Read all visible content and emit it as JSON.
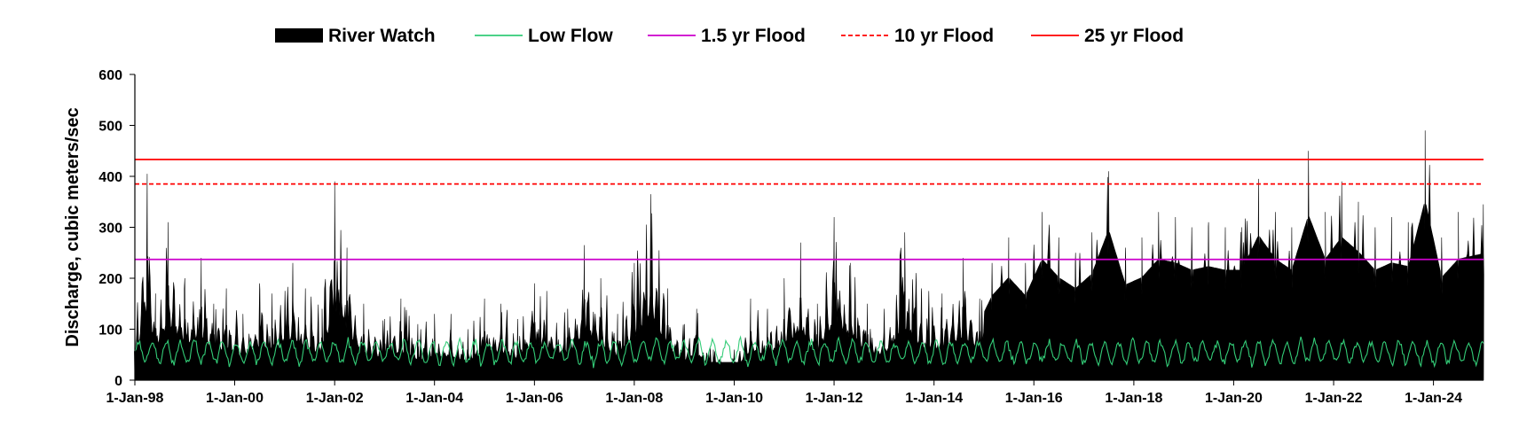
{
  "chart_data": {
    "type": "area",
    "title": "",
    "xlabel": "",
    "ylabel": "Discharge, cubic meters/sec",
    "ylim": [
      0,
      600
    ],
    "yticks": [
      0,
      100,
      200,
      300,
      400,
      500,
      600
    ],
    "xlim": [
      "1998-01-01",
      "2025-01-01"
    ],
    "xticks": [
      {
        "date": "1998-01-01",
        "label": "1-Jan-98"
      },
      {
        "date": "2000-01-01",
        "label": "1-Jan-00"
      },
      {
        "date": "2002-01-01",
        "label": "1-Jan-02"
      },
      {
        "date": "2004-01-01",
        "label": "1-Jan-04"
      },
      {
        "date": "2006-01-01",
        "label": "1-Jan-06"
      },
      {
        "date": "2008-01-01",
        "label": "1-Jan-08"
      },
      {
        "date": "2010-01-01",
        "label": "1-Jan-10"
      },
      {
        "date": "2012-01-01",
        "label": "1-Jan-12"
      },
      {
        "date": "2014-01-01",
        "label": "1-Jan-14"
      },
      {
        "date": "2016-01-01",
        "label": "1-Jan-16"
      },
      {
        "date": "2018-01-01",
        "label": "1-Jan-18"
      },
      {
        "date": "2020-01-01",
        "label": "1-Jan-20"
      },
      {
        "date": "2022-01-01",
        "label": "1-Jan-22"
      },
      {
        "date": "2024-01-01",
        "label": "1-Jan-24"
      }
    ],
    "grid": false,
    "legend_position": "top",
    "series": [
      {
        "name": "River Watch",
        "style": "area",
        "color": "#000000",
        "x": [
          "1998-01-01",
          "1998-04-01",
          "1998-06-01",
          "1998-09-01",
          "1999-01-01",
          "1999-05-01",
          "1999-08-01",
          "1999-11-01",
          "2000-03-01",
          "2000-07-01",
          "2000-10-01",
          "2001-03-01",
          "2001-06-01",
          "2001-10-01",
          "2002-01-01",
          "2002-04-01",
          "2002-08-01",
          "2003-01-01",
          "2003-05-01",
          "2003-09-01",
          "2004-01-01",
          "2004-05-01",
          "2004-09-01",
          "2005-01-01",
          "2005-05-01",
          "2005-09-01",
          "2006-01-01",
          "2006-04-01",
          "2006-09-01",
          "2007-01-01",
          "2007-05-01",
          "2007-09-01",
          "2008-01-01",
          "2008-05-01",
          "2008-09-01",
          "2009-01-01",
          "2009-04-01",
          "2009-08-01",
          "2010-01-01",
          "2010-05-01",
          "2010-09-01",
          "2011-01-01",
          "2011-05-01",
          "2011-09-01",
          "2012-01-01",
          "2012-05-01",
          "2012-09-01",
          "2013-01-01",
          "2013-06-01",
          "2013-10-01",
          "2014-03-01",
          "2014-08-01",
          "2014-12-01",
          "2015-03-01",
          "2015-07-01",
          "2015-11-01",
          "2016-03-01",
          "2016-07-01",
          "2016-11-01",
          "2017-03-01",
          "2017-07-01",
          "2017-11-01",
          "2018-03-01",
          "2018-07-01",
          "2018-11-01",
          "2019-03-01",
          "2019-07-01",
          "2019-11-01",
          "2020-03-01",
          "2020-07-01",
          "2020-11-01",
          "2021-03-01",
          "2021-07-01",
          "2021-11-01",
          "2022-03-01",
          "2022-07-01",
          "2022-11-01",
          "2023-03-01",
          "2023-07-01",
          "2023-11-01",
          "2024-03-01",
          "2024-07-01",
          "2024-12-31"
        ],
        "values": [
          95,
          405,
          170,
          310,
          200,
          240,
          150,
          180,
          130,
          190,
          170,
          230,
          180,
          140,
          390,
          260,
          150,
          120,
          160,
          110,
          130,
          130,
          100,
          160,
          150,
          120,
          190,
          175,
          140,
          265,
          200,
          130,
          230,
          365,
          180,
          110,
          140,
          60,
          60,
          160,
          140,
          200,
          270,
          150,
          320,
          230,
          150,
          140,
          290,
          180,
          170,
          240,
          160,
          230,
          280,
          230,
          330,
          280,
          250,
          290,
          410,
          260,
          280,
          330,
          320,
          300,
          310,
          300,
          300,
          395,
          330,
          300,
          450,
          330,
          390,
          350,
          300,
          320,
          310,
          490,
          280,
          330,
          345
        ]
      },
      {
        "name": "Low Flow",
        "style": "line",
        "color": "#33cc77",
        "x": [
          "1998-01-01",
          "2025-01-01"
        ],
        "values": [
          55,
          55
        ]
      },
      {
        "name": "1.5 yr Flood",
        "style": "hline",
        "color": "#cc00cc",
        "values": [
          237
        ]
      },
      {
        "name": "10 yr Flood",
        "style": "hline-dashed",
        "color": "#ff0000",
        "values": [
          385
        ]
      },
      {
        "name": "25 yr Flood",
        "style": "hline",
        "color": "#ff0000",
        "values": [
          433
        ]
      }
    ]
  }
}
